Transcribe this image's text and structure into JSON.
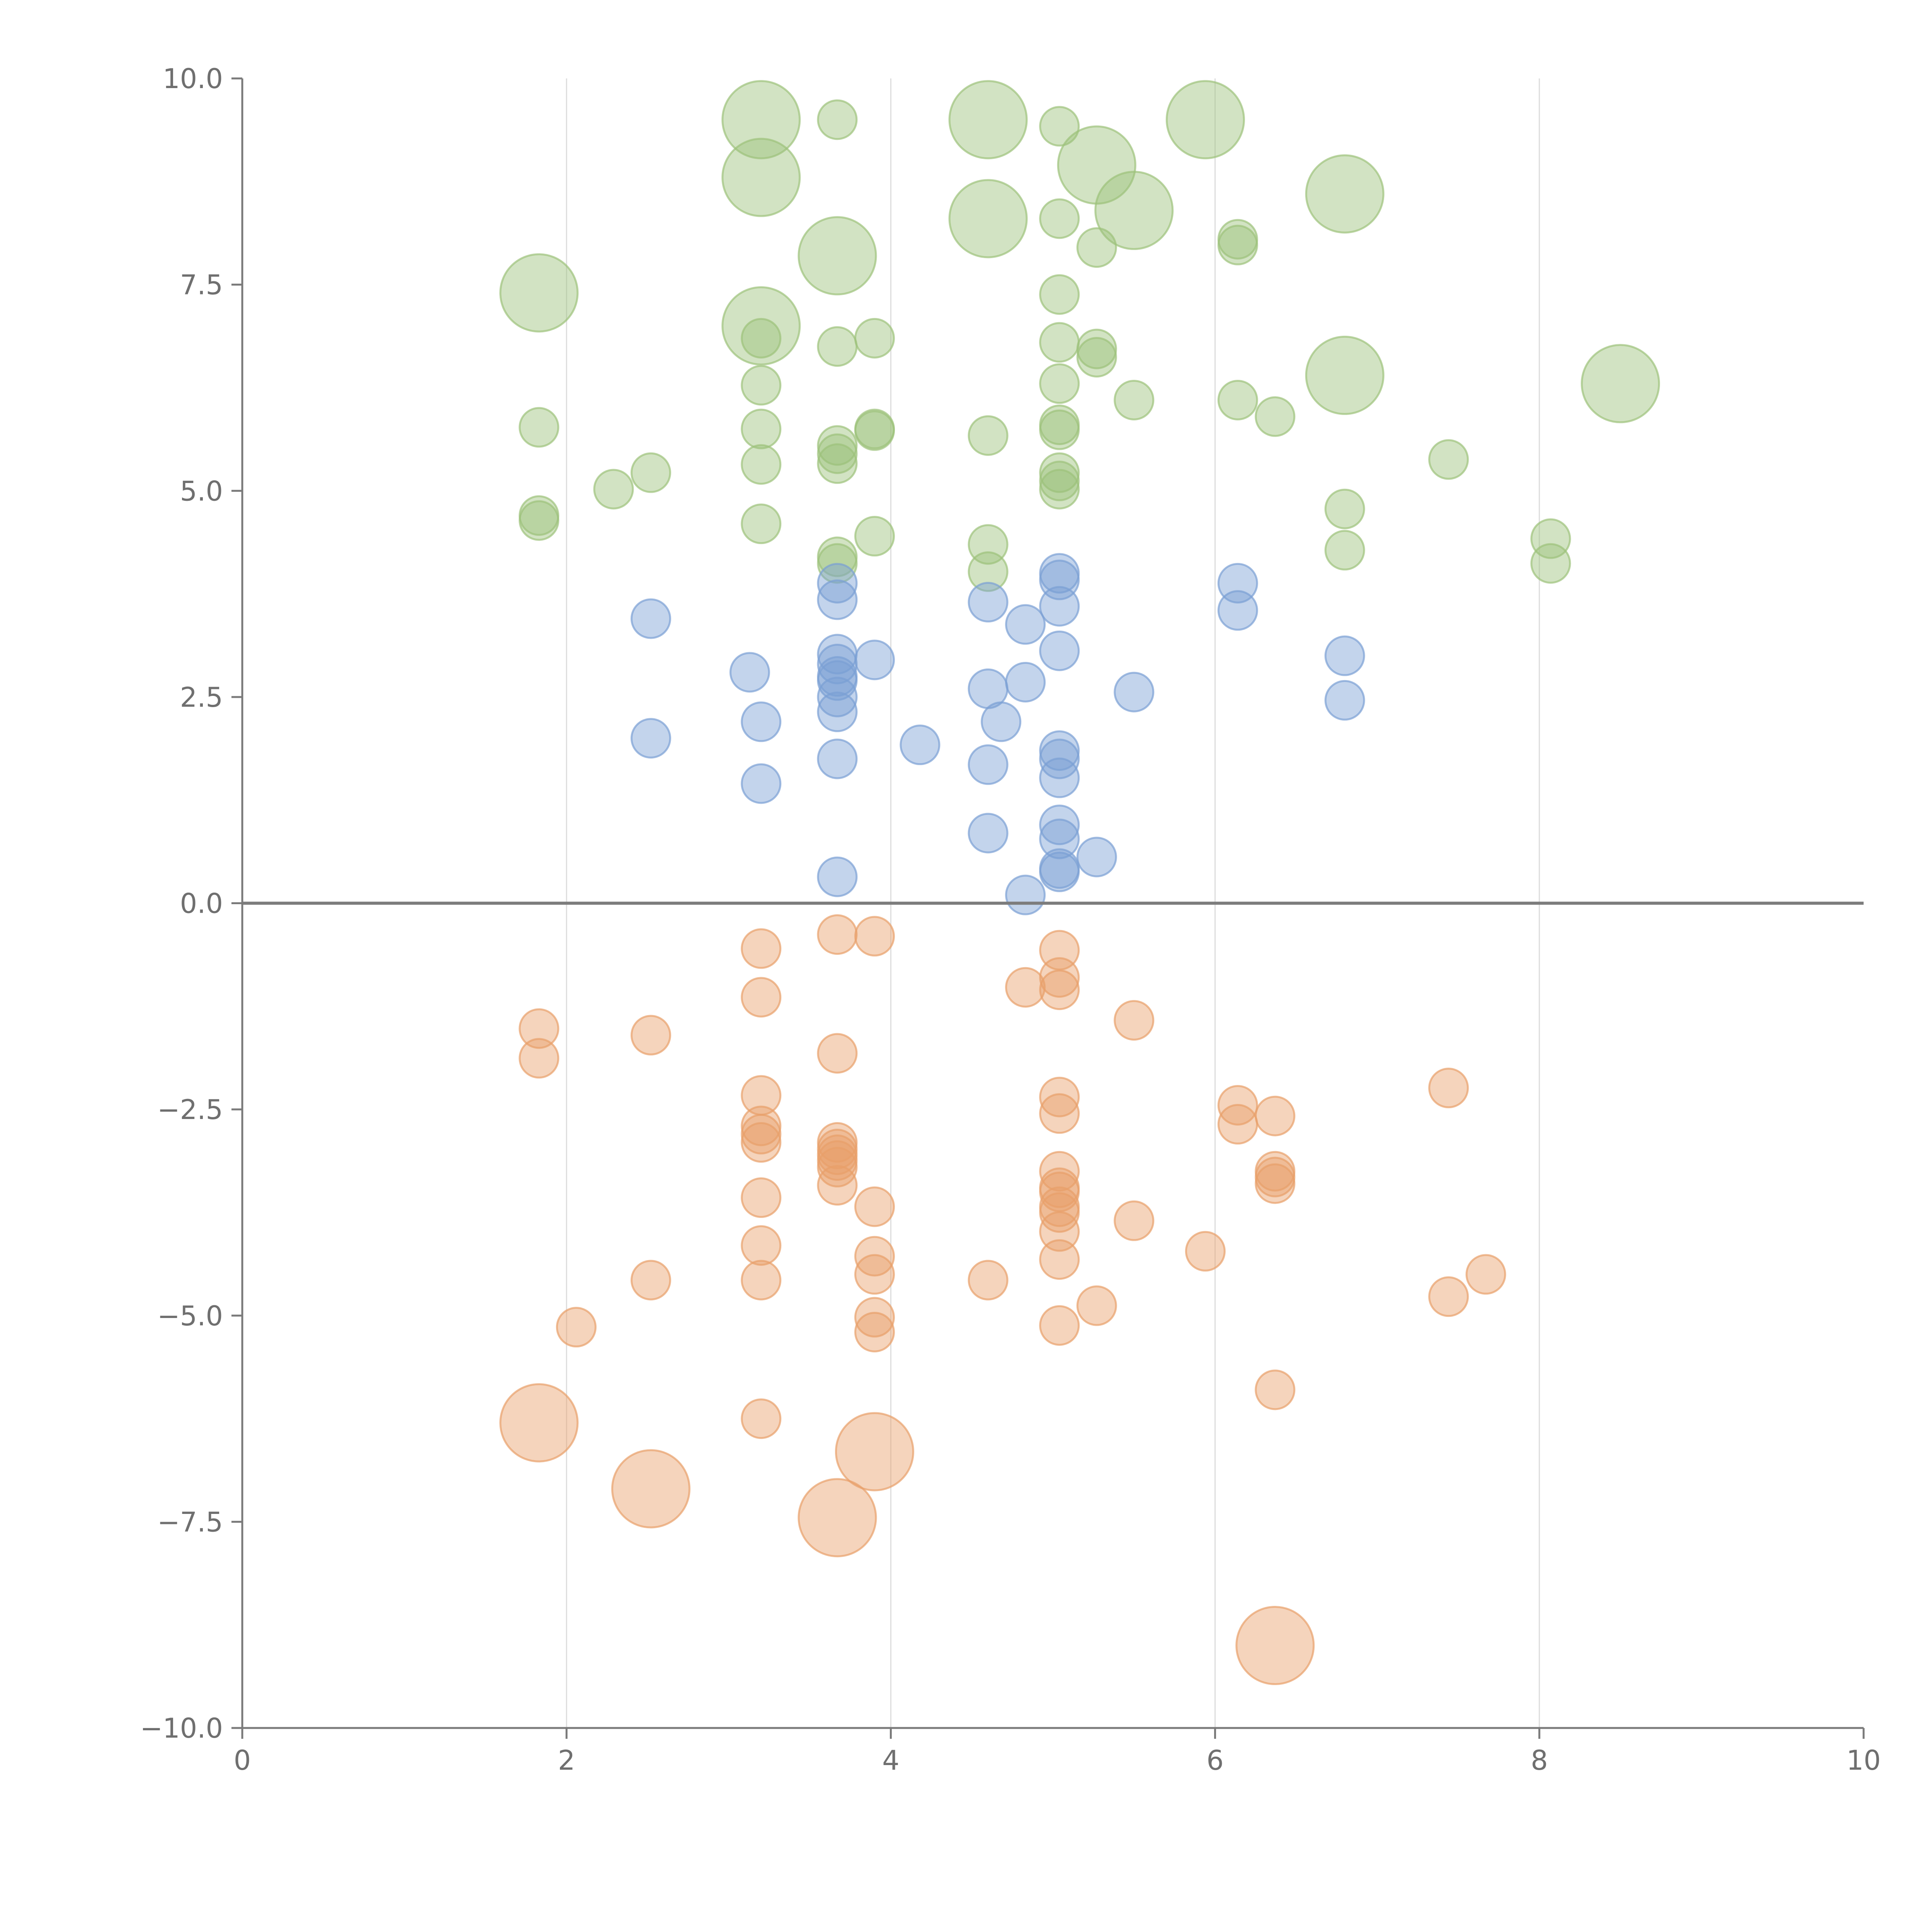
{
  "chart_data": {
    "type": "scatter",
    "title": "",
    "xlabel": "",
    "ylabel": "",
    "xlim": [
      0,
      10
    ],
    "ylim": [
      -10,
      10
    ],
    "grid": "vertical",
    "legend": "none",
    "x_ticks": [
      0,
      2,
      4,
      6,
      8,
      10
    ],
    "y_ticks": [
      -10,
      -7.5,
      -5,
      -2.5,
      0,
      2.5,
      5,
      7.5,
      10
    ],
    "x_tick_labels": [
      "0",
      "2",
      "4",
      "6",
      "8",
      "10"
    ],
    "y_tick_labels": [
      "−10.0",
      "−7.5",
      "−5.0",
      "−2.5",
      "0.0",
      "2.5",
      "5.0",
      "7.5",
      "10.0"
    ],
    "series": [
      {
        "color": "#9cc27a",
        "points": [
          [
            3.2,
            9.5,
            1
          ],
          [
            3.67,
            9.5,
            0
          ],
          [
            4.6,
            9.5,
            1
          ],
          [
            5.04,
            9.42,
            0
          ],
          [
            5.94,
            9.5,
            1
          ],
          [
            3.2,
            8.8,
            1
          ],
          [
            5.27,
            8.95,
            1
          ],
          [
            6.8,
            8.6,
            1
          ],
          [
            4.6,
            8.3,
            1
          ],
          [
            5.04,
            8.3,
            0
          ],
          [
            5.5,
            8.4,
            1
          ],
          [
            5.27,
            7.95,
            0
          ],
          [
            6.14,
            8.05,
            0
          ],
          [
            6.14,
            7.98,
            0
          ],
          [
            3.67,
            7.85,
            1
          ],
          [
            1.83,
            7.4,
            1
          ],
          [
            5.04,
            7.38,
            0
          ],
          [
            3.2,
            7.0,
            1
          ],
          [
            3.2,
            6.85,
            0
          ],
          [
            3.9,
            6.85,
            0
          ],
          [
            3.67,
            6.75,
            0
          ],
          [
            5.04,
            6.8,
            0
          ],
          [
            5.27,
            6.72,
            0
          ],
          [
            5.27,
            6.62,
            0
          ],
          [
            6.8,
            6.4,
            1
          ],
          [
            8.5,
            6.3,
            1
          ],
          [
            3.2,
            6.28,
            0
          ],
          [
            5.04,
            6.3,
            0
          ],
          [
            5.5,
            6.1,
            0
          ],
          [
            6.14,
            6.1,
            0
          ],
          [
            6.37,
            5.9,
            0
          ],
          [
            1.83,
            5.77,
            0
          ],
          [
            3.2,
            5.75,
            0
          ],
          [
            3.9,
            5.75,
            0
          ],
          [
            3.9,
            5.73,
            0
          ],
          [
            5.04,
            5.8,
            0
          ],
          [
            5.04,
            5.74,
            0
          ],
          [
            4.6,
            5.67,
            0
          ],
          [
            3.67,
            5.55,
            0
          ],
          [
            3.67,
            5.45,
            0
          ],
          [
            3.67,
            5.33,
            0
          ],
          [
            3.2,
            5.32,
            0
          ],
          [
            7.44,
            5.38,
            0
          ],
          [
            2.52,
            5.22,
            0
          ],
          [
            2.29,
            5.02,
            0
          ],
          [
            5.04,
            5.22,
            0
          ],
          [
            5.04,
            5.12,
            0
          ],
          [
            5.04,
            5.02,
            0
          ],
          [
            1.83,
            4.7,
            0
          ],
          [
            1.83,
            4.64,
            0
          ],
          [
            6.8,
            4.78,
            0
          ],
          [
            3.2,
            4.6,
            0
          ],
          [
            3.9,
            4.45,
            0
          ],
          [
            4.6,
            4.35,
            0
          ],
          [
            6.8,
            4.28,
            0
          ],
          [
            8.07,
            4.42,
            0
          ],
          [
            8.07,
            4.12,
            0
          ],
          [
            3.67,
            4.2,
            0
          ],
          [
            3.67,
            4.12,
            0
          ],
          [
            4.6,
            4.02,
            0
          ]
        ]
      },
      {
        "color": "#7b9fd4",
        "points": [
          [
            5.04,
            4.0,
            0
          ],
          [
            5.04,
            3.92,
            0
          ],
          [
            6.14,
            3.88,
            0
          ],
          [
            3.67,
            3.88,
            0
          ],
          [
            3.67,
            3.68,
            0
          ],
          [
            4.6,
            3.65,
            0
          ],
          [
            5.04,
            3.6,
            0
          ],
          [
            6.14,
            3.55,
            0
          ],
          [
            2.52,
            3.45,
            0
          ],
          [
            4.83,
            3.38,
            0
          ],
          [
            5.04,
            3.06,
            0
          ],
          [
            3.67,
            3.02,
            0
          ],
          [
            3.9,
            2.95,
            0
          ],
          [
            3.67,
            2.9,
            0
          ],
          [
            6.8,
            3.0,
            0
          ],
          [
            3.13,
            2.8,
            0
          ],
          [
            3.67,
            2.75,
            0
          ],
          [
            3.67,
            2.7,
            0
          ],
          [
            4.83,
            2.68,
            0
          ],
          [
            4.6,
            2.6,
            0
          ],
          [
            5.5,
            2.56,
            0
          ],
          [
            3.67,
            2.5,
            0
          ],
          [
            6.8,
            2.46,
            0
          ],
          [
            3.67,
            2.32,
            0
          ],
          [
            3.2,
            2.2,
            0
          ],
          [
            4.68,
            2.2,
            0
          ],
          [
            2.52,
            2.0,
            0
          ],
          [
            4.18,
            1.92,
            0
          ],
          [
            5.04,
            1.85,
            0
          ],
          [
            5.04,
            1.75,
            0
          ],
          [
            3.67,
            1.75,
            0
          ],
          [
            4.6,
            1.68,
            0
          ],
          [
            5.04,
            1.52,
            0
          ],
          [
            3.2,
            1.45,
            0
          ],
          [
            5.04,
            0.95,
            0
          ],
          [
            4.6,
            0.85,
            0
          ],
          [
            5.04,
            0.78,
            0
          ],
          [
            5.27,
            0.56,
            0
          ],
          [
            5.04,
            0.42,
            0
          ],
          [
            5.04,
            0.38,
            0
          ],
          [
            3.67,
            0.32,
            0
          ],
          [
            4.83,
            0.1,
            0
          ]
        ]
      },
      {
        "color": "#e8a06a",
        "points": [
          [
            3.67,
            -0.38,
            0
          ],
          [
            3.9,
            -0.4,
            0
          ],
          [
            3.2,
            -0.55,
            0
          ],
          [
            5.04,
            -0.57,
            0
          ],
          [
            5.04,
            -0.9,
            0
          ],
          [
            4.83,
            -1.02,
            0
          ],
          [
            5.04,
            -1.05,
            0
          ],
          [
            3.2,
            -1.14,
            0
          ],
          [
            5.5,
            -1.42,
            0
          ],
          [
            1.83,
            -1.52,
            0
          ],
          [
            2.52,
            -1.6,
            0
          ],
          [
            3.67,
            -1.82,
            0
          ],
          [
            1.83,
            -1.88,
            0
          ],
          [
            7.44,
            -2.24,
            0
          ],
          [
            3.2,
            -2.33,
            0
          ],
          [
            5.04,
            -2.35,
            0
          ],
          [
            6.14,
            -2.45,
            0
          ],
          [
            5.04,
            -2.55,
            0
          ],
          [
            6.37,
            -2.58,
            0
          ],
          [
            6.14,
            -2.68,
            0
          ],
          [
            3.2,
            -2.7,
            0
          ],
          [
            3.2,
            -2.8,
            0
          ],
          [
            3.2,
            -2.9,
            0
          ],
          [
            3.67,
            -2.9,
            0
          ],
          [
            3.67,
            -2.98,
            0
          ],
          [
            3.67,
            -3.05,
            0
          ],
          [
            3.67,
            -3.12,
            0
          ],
          [
            3.67,
            -3.2,
            0
          ],
          [
            6.37,
            -3.25,
            0
          ],
          [
            5.04,
            -3.25,
            0
          ],
          [
            6.37,
            -3.32,
            0
          ],
          [
            6.37,
            -3.4,
            0
          ],
          [
            3.67,
            -3.42,
            0
          ],
          [
            5.04,
            -3.45,
            0
          ],
          [
            5.04,
            -3.5,
            0
          ],
          [
            3.2,
            -3.57,
            0
          ],
          [
            5.04,
            -3.68,
            0
          ],
          [
            3.9,
            -3.68,
            0
          ],
          [
            5.04,
            -3.75,
            0
          ],
          [
            5.5,
            -3.85,
            0
          ],
          [
            5.04,
            -3.98,
            0
          ],
          [
            3.2,
            -4.15,
            0
          ],
          [
            5.94,
            -4.22,
            0
          ],
          [
            3.9,
            -4.28,
            0
          ],
          [
            5.04,
            -4.32,
            0
          ],
          [
            3.9,
            -4.5,
            0
          ],
          [
            7.67,
            -4.5,
            0
          ],
          [
            3.2,
            -4.57,
            0
          ],
          [
            2.52,
            -4.57,
            0
          ],
          [
            4.6,
            -4.57,
            0
          ],
          [
            7.44,
            -4.77,
            0
          ],
          [
            5.27,
            -4.88,
            0
          ],
          [
            3.9,
            -5.02,
            0
          ],
          [
            5.04,
            -5.12,
            0
          ],
          [
            2.06,
            -5.14,
            0
          ],
          [
            3.9,
            -5.2,
            0
          ],
          [
            6.37,
            -5.9,
            0
          ],
          [
            3.2,
            -6.25,
            0
          ],
          [
            1.83,
            -6.3,
            1
          ],
          [
            3.9,
            -6.65,
            1
          ],
          [
            2.52,
            -7.1,
            1
          ],
          [
            3.67,
            -7.45,
            1
          ],
          [
            6.37,
            -9.0,
            1
          ]
        ]
      }
    ]
  }
}
